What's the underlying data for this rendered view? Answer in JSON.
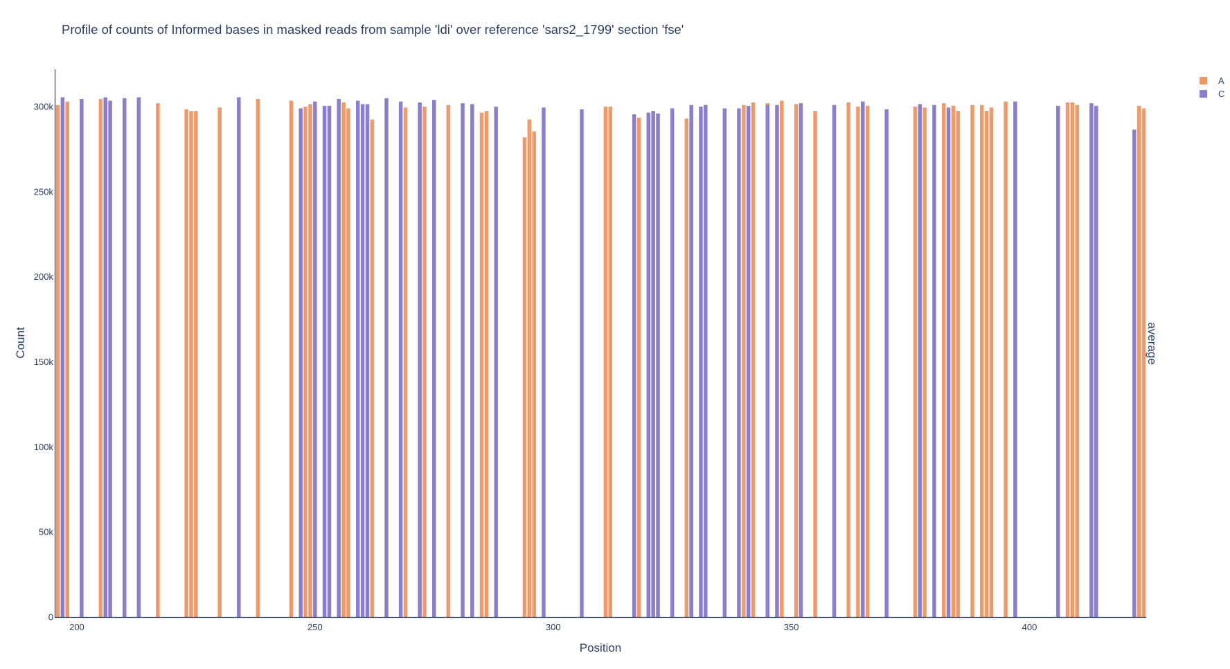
{
  "chart_data": {
    "type": "bar",
    "title": "Profile of counts of Informed bases in masked reads from sample 'ldi' over reference 'sars2_1799' section 'fse'",
    "xlabel": "Position",
    "ylabel": "Count",
    "right_label": "average",
    "xlim": [
      195.5,
      424.5
    ],
    "ylim": [
      0,
      322000
    ],
    "xticks": [
      200,
      250,
      300,
      350,
      400
    ],
    "yticks": [
      0,
      50000,
      100000,
      150000,
      200000,
      250000,
      300000
    ],
    "ytick_labels": [
      "0",
      "50k",
      "100k",
      "150k",
      "200k",
      "250k",
      "300k"
    ],
    "grid": false,
    "legend_position": "top-right",
    "series": [
      {
        "name": "A",
        "color": "#ef9a68",
        "points": [
          [
            196,
            301000
          ],
          [
            198,
            303000
          ],
          [
            205,
            304500
          ],
          [
            217,
            302000
          ],
          [
            223,
            298500
          ],
          [
            224,
            297500
          ],
          [
            225,
            297500
          ],
          [
            230,
            299500
          ],
          [
            238,
            304500
          ],
          [
            245,
            303500
          ],
          [
            248,
            300000
          ],
          [
            249,
            301500
          ],
          [
            256,
            302500
          ],
          [
            257,
            299000
          ],
          [
            262,
            292500
          ],
          [
            269,
            299500
          ],
          [
            273,
            300000
          ],
          [
            278,
            301000
          ],
          [
            283,
            289500
          ],
          [
            285,
            296500
          ],
          [
            286,
            297500
          ],
          [
            294,
            282000
          ],
          [
            295,
            292500
          ],
          [
            296,
            285500
          ],
          [
            311,
            300000
          ],
          [
            312,
            300000
          ],
          [
            318,
            293500
          ],
          [
            328,
            293000
          ],
          [
            329,
            297500
          ],
          [
            340,
            301000
          ],
          [
            342,
            302500
          ],
          [
            345,
            302000
          ],
          [
            348,
            303500
          ],
          [
            351,
            301500
          ],
          [
            355,
            297500
          ],
          [
            362,
            302500
          ],
          [
            364,
            300000
          ],
          [
            366,
            300500
          ],
          [
            376,
            300000
          ],
          [
            378,
            299500
          ],
          [
            382,
            302000
          ],
          [
            384,
            300500
          ],
          [
            385,
            297500
          ],
          [
            388,
            301000
          ],
          [
            390,
            301000
          ],
          [
            391,
            297500
          ],
          [
            392,
            299500
          ],
          [
            395,
            303000
          ],
          [
            408,
            302500
          ],
          [
            409,
            302500
          ],
          [
            410,
            301000
          ],
          [
            423,
            300500
          ],
          [
            424,
            299000
          ]
        ]
      },
      {
        "name": "C",
        "color": "#8b7fcb",
        "points": [
          [
            197,
            305500
          ],
          [
            201,
            304500
          ],
          [
            206,
            305500
          ],
          [
            207,
            303500
          ],
          [
            210,
            305000
          ],
          [
            213,
            305500
          ],
          [
            234,
            305500
          ],
          [
            247,
            299000
          ],
          [
            250,
            303000
          ],
          [
            252,
            300500
          ],
          [
            253,
            300500
          ],
          [
            255,
            304500
          ],
          [
            259,
            303500
          ],
          [
            260,
            301500
          ],
          [
            261,
            301500
          ],
          [
            265,
            305000
          ],
          [
            268,
            303000
          ],
          [
            272,
            302500
          ],
          [
            275,
            304000
          ],
          [
            281,
            302000
          ],
          [
            283,
            301500
          ],
          [
            288,
            300000
          ],
          [
            298,
            299500
          ],
          [
            306,
            298500
          ],
          [
            317,
            295500
          ],
          [
            320,
            296500
          ],
          [
            321,
            297500
          ],
          [
            322,
            296000
          ],
          [
            325,
            299000
          ],
          [
            329,
            301000
          ],
          [
            331,
            300000
          ],
          [
            332,
            301000
          ],
          [
            336,
            299000
          ],
          [
            339,
            299000
          ],
          [
            341,
            300500
          ],
          [
            345,
            301000
          ],
          [
            347,
            301000
          ],
          [
            352,
            302000
          ],
          [
            359,
            301000
          ],
          [
            365,
            303000
          ],
          [
            370,
            298500
          ],
          [
            377,
            301500
          ],
          [
            380,
            301000
          ],
          [
            383,
            299500
          ],
          [
            397,
            303000
          ],
          [
            406,
            300500
          ],
          [
            413,
            302000
          ],
          [
            414,
            300500
          ],
          [
            422,
            286500
          ]
        ]
      }
    ]
  }
}
